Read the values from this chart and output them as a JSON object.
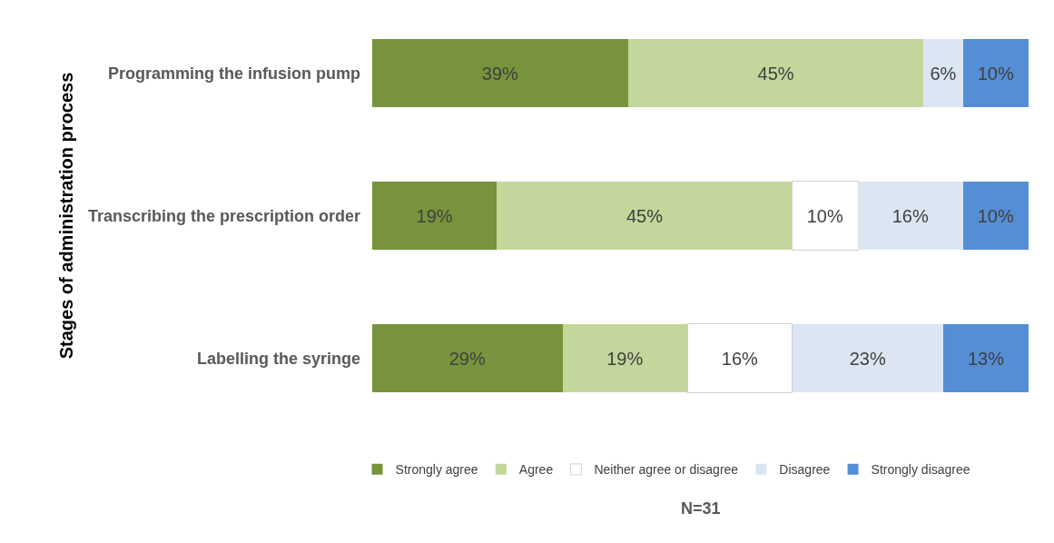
{
  "chart_data": {
    "type": "bar",
    "orientation": "horizontal",
    "stacked": true,
    "ylabel": "Stages of administration process",
    "categories": [
      "Programming the infusion pump",
      "Transcribing the prescription order",
      "Labelling the syringe"
    ],
    "series": [
      {
        "name": "Strongly agree",
        "color": "#77933c",
        "values": [
          39,
          19,
          29
        ],
        "value_labels": [
          "39%",
          "19%",
          "29%"
        ]
      },
      {
        "name": "Agree",
        "color": "#c3d69b",
        "values": [
          45,
          45,
          19
        ],
        "value_labels": [
          "45%",
          "45%",
          "19%"
        ]
      },
      {
        "name": "Neither agree or disagree",
        "color": "#ffffff",
        "values": [
          0,
          10,
          16
        ],
        "value_labels": [
          null,
          "10%",
          "16%"
        ]
      },
      {
        "name": "Disagree",
        "color": "#dce6f2",
        "values": [
          6,
          16,
          23
        ],
        "value_labels": [
          "6%",
          "16%",
          "23%"
        ]
      },
      {
        "name": "Strongly disagree",
        "color": "#558ed5",
        "values": [
          10,
          10,
          13
        ],
        "value_labels": [
          "10%",
          "10%",
          "13%"
        ]
      }
    ],
    "xlim": [
      0,
      100
    ],
    "tick_labels": "y",
    "grid": false,
    "legend": "bottom",
    "annotations": [
      "N=31"
    ]
  }
}
